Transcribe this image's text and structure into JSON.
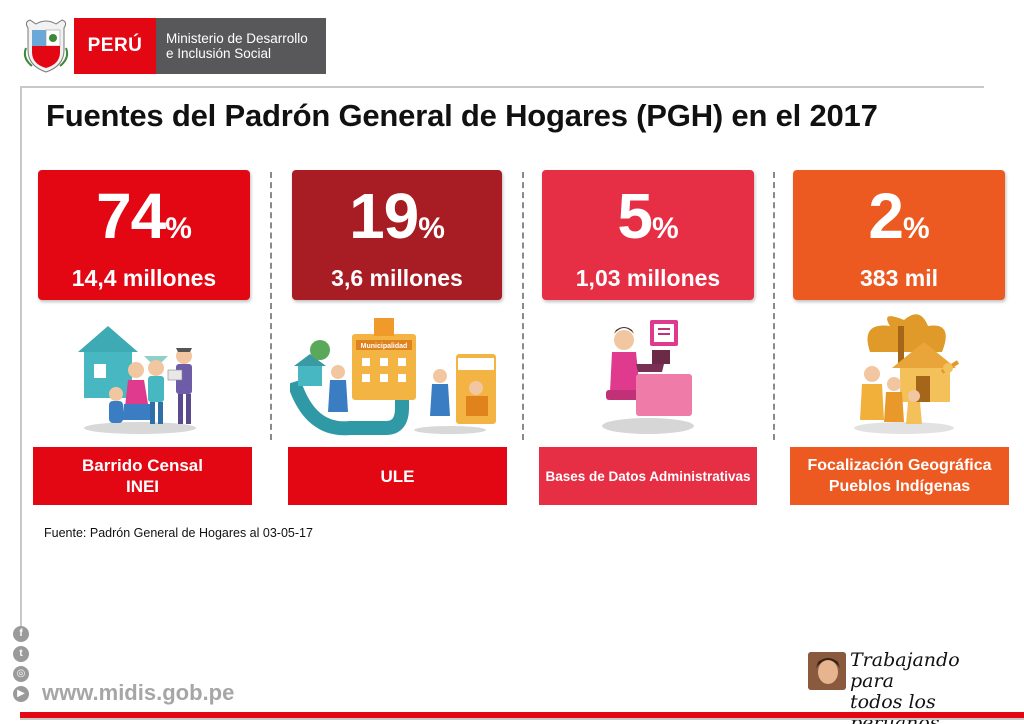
{
  "header": {
    "country": "PERÚ",
    "ministry_line1": "Ministerio de Desarrollo",
    "ministry_line2": "e Inclusión Social"
  },
  "title": "Fuentes del Padrón General de Hogares (PGH) en el 2017",
  "sources": [
    {
      "pct": "74",
      "amount": "14,4 millones",
      "label_line1": "Barrido Censal",
      "label_line2": "INEI",
      "color": "#e30613",
      "label_color": "#e30613"
    },
    {
      "pct": "19",
      "amount": "3,6 millones",
      "label_line1": "ULE",
      "label_line2": "",
      "color": "#a81c24",
      "label_color": "#e30613"
    },
    {
      "pct": "5",
      "amount": "1,03 millones",
      "label_line1": "Bases de Datos Administrativas",
      "label_line2": "",
      "color": "#e62e45",
      "label_color": "#e62e45"
    },
    {
      "pct": "2",
      "amount": "383 mil",
      "label_line1": "Focalización Geográfica",
      "label_line2": "Pueblos Indígenas",
      "color": "#ec5a22",
      "label_color": "#ec5a22"
    }
  ],
  "percent_symbol": "%",
  "illustration_texts": {
    "municipalidad": "Municipalidad"
  },
  "source_note": "Fuente: Padrón General de Hogares al 03-05-17",
  "social_icons": [
    "facebook-icon",
    "twitter-icon",
    "instagram-icon",
    "youtube-icon"
  ],
  "social_glyphs": [
    "f",
    "t",
    "◎",
    "▶"
  ],
  "website": "www.midis.gob.pe",
  "slogan_line1": "Trabajando para",
  "slogan_line2": "todos los peruanos"
}
